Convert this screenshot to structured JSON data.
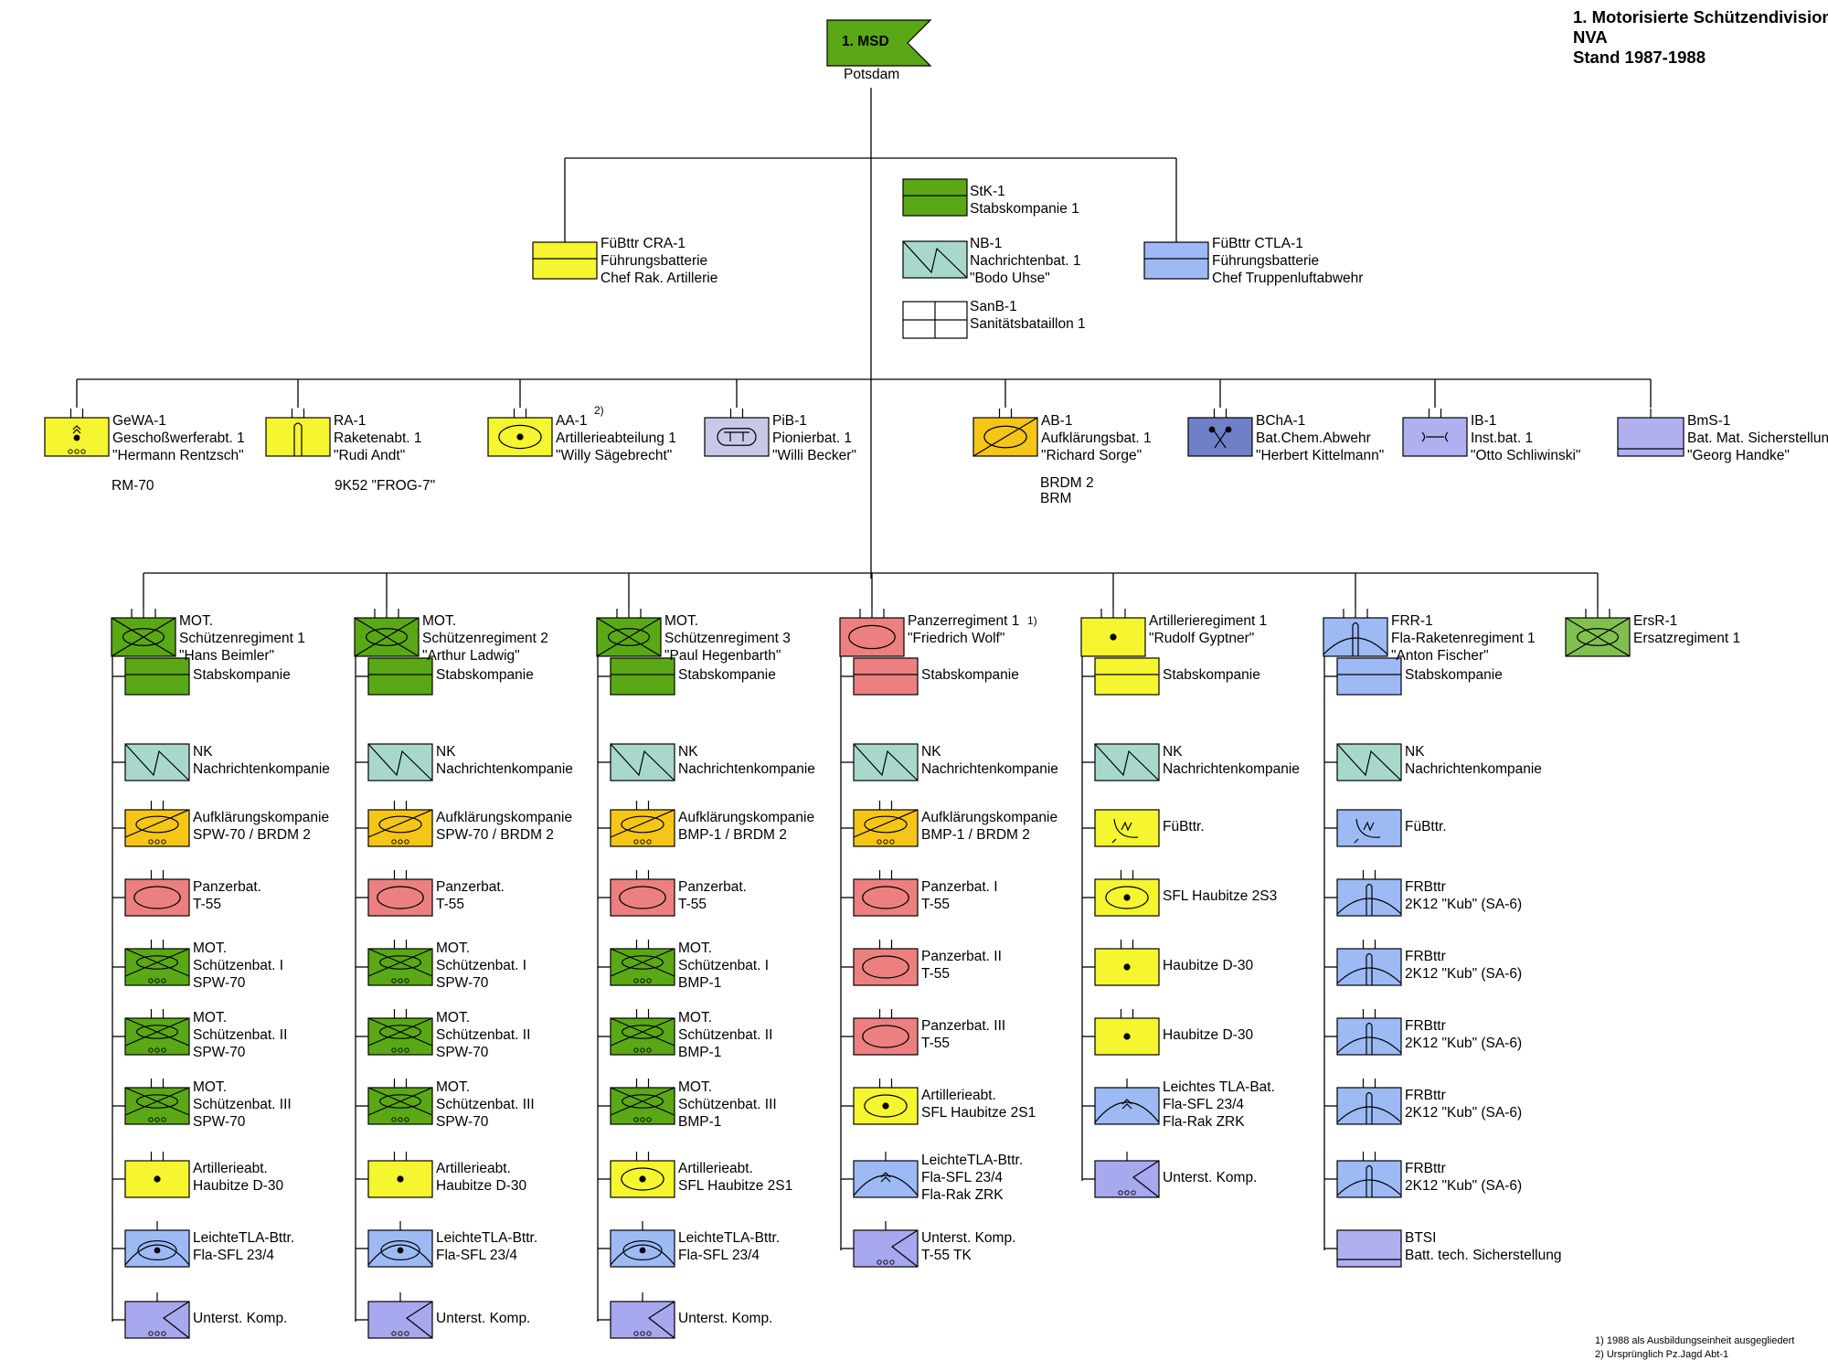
{
  "title": [
    "1. Motorisierte Schützendivision",
    "NVA",
    "Stand 1987-1988"
  ],
  "root": {
    "name": "1. MSD",
    "location": "Potsdam",
    "color": "#5aa815"
  },
  "colors": {
    "infantry": "#5aa815",
    "signals": "#a8d8cc",
    "artillery": "#f5f530",
    "tank": "#ec8080",
    "recon": "#f5c518",
    "aa": "#9dbaf5",
    "support": "#a8a8ef",
    "engineer": "#c8c8e8",
    "chem": "#7080c8",
    "supply": "#b0b0f0",
    "reserve": "#80c050",
    "medical": "#ffffff"
  },
  "hq_units": [
    {
      "lines": [
        "StK-1",
        "Stabskompanie 1"
      ],
      "symbol": "hq",
      "color": "#5aa815"
    },
    {
      "lines": [
        "NB-1",
        "Nachrichtenbat. 1",
        "\"Bodo Uhse\""
      ],
      "symbol": "signals",
      "color": "#a8d8cc"
    },
    {
      "lines": [
        "SanB-1",
        "Sanitätsbataillon 1"
      ],
      "symbol": "medical",
      "color": "#ffffff"
    },
    {
      "lines": [
        "FüBttr CRA-1",
        "Führungsbatterie",
        "Chef Rak. Artillerie"
      ],
      "symbol": "hq",
      "color": "#f5f530"
    },
    {
      "lines": [
        "FüBttr CTLA-1",
        "Führungsbatterie",
        "Chef Truppenluftabwehr"
      ],
      "symbol": "hq",
      "color": "#9dbaf5"
    }
  ],
  "battalions": [
    {
      "lines": [
        "GeWA-1",
        "Geschoßwerferabt. 1",
        "\"Hermann Rentzsch\""
      ],
      "extra": [
        "RM-70"
      ],
      "symbol": "rocket",
      "color": "#f5f530"
    },
    {
      "lines": [
        "RA-1",
        "Raketenabt. 1",
        "\"Rudi Andt\""
      ],
      "extra": [
        "9K52 \"FROG-7\""
      ],
      "symbol": "missile",
      "color": "#f5f530"
    },
    {
      "lines": [
        "AA-1",
        "Artillerieabteilung 1",
        "\"Willy Sägebrecht\""
      ],
      "note": "2)",
      "symbol": "sp_art",
      "color": "#f5f530"
    },
    {
      "lines": [
        "PiB-1",
        "Pionierbat. 1",
        "\"Willi Becker\""
      ],
      "symbol": "engineer",
      "color": "#c8c8e8"
    },
    {
      "lines": [
        "AB-1",
        "Aufklärungsbat. 1",
        "\"Richard Sorge\""
      ],
      "extra": [
        "BRDM 2",
        "BRM"
      ],
      "symbol": "recon",
      "color": "#f5c518"
    },
    {
      "lines": [
        "BChA-1",
        "Bat.Chem.Abwehr",
        "\"Herbert Kittelmann\""
      ],
      "symbol": "chem",
      "color": "#7080c8"
    },
    {
      "lines": [
        "IB-1",
        "Inst.bat. 1",
        "\"Otto Schliwinski\""
      ],
      "symbol": "maint",
      "color": "#b0b0f0"
    },
    {
      "lines": [
        "BmS-1",
        "Bat. Mat. Sicherstellung",
        "\"Georg Handke\""
      ],
      "symbol": "supply",
      "color": "#b0b0f0"
    }
  ],
  "regiments": [
    {
      "lines": [
        "MOT.",
        "Schützenregiment 1",
        "\"Hans Beimler\""
      ],
      "symbol": "inf",
      "color": "#5aa815",
      "subunits": [
        {
          "lines": [
            "Stabskompanie"
          ],
          "symbol": "hq",
          "color": "#5aa815"
        },
        {
          "lines": [
            "NK",
            "Nachrichtenkompanie"
          ],
          "symbol": "signals",
          "color": "#a8d8cc"
        },
        {
          "lines": [
            "Aufklärungskompanie",
            "SPW-70 / BRDM 2"
          ],
          "symbol": "recon_w",
          "color": "#f5c518"
        },
        {
          "lines": [
            "Panzerbat.",
            "T-55"
          ],
          "symbol": "tank",
          "color": "#ec8080"
        },
        {
          "lines": [
            "MOT.",
            "Schützenbat. I",
            "SPW-70"
          ],
          "symbol": "inf_w",
          "color": "#5aa815"
        },
        {
          "lines": [
            "MOT.",
            "Schützenbat. II",
            "SPW-70"
          ],
          "symbol": "inf_w",
          "color": "#5aa815"
        },
        {
          "lines": [
            "MOT.",
            "Schützenbat. III",
            "SPW-70"
          ],
          "symbol": "inf_w",
          "color": "#5aa815"
        },
        {
          "lines": [
            "Artillerieabt.",
            "Haubitze D-30"
          ],
          "symbol": "art",
          "color": "#f5f530"
        },
        {
          "lines": [
            "LeichteTLA-Bttr.",
            "Fla-SFL 23/4"
          ],
          "symbol": "aa_sp",
          "color": "#9dbaf5"
        },
        {
          "lines": [
            "Unterst. Komp."
          ],
          "symbol": "support",
          "color": "#a8a8ef"
        }
      ]
    },
    {
      "lines": [
        "MOT.",
        "Schützenregiment 2",
        "\"Arthur Ladwig\""
      ],
      "symbol": "inf",
      "color": "#5aa815",
      "subunits": [
        {
          "lines": [
            "Stabskompanie"
          ],
          "symbol": "hq",
          "color": "#5aa815"
        },
        {
          "lines": [
            "NK",
            "Nachrichtenkompanie"
          ],
          "symbol": "signals",
          "color": "#a8d8cc"
        },
        {
          "lines": [
            "Aufklärungskompanie",
            "SPW-70 / BRDM 2"
          ],
          "symbol": "recon_w",
          "color": "#f5c518"
        },
        {
          "lines": [
            "Panzerbat.",
            "T-55"
          ],
          "symbol": "tank",
          "color": "#ec8080"
        },
        {
          "lines": [
            "MOT.",
            "Schützenbat. I",
            "SPW-70"
          ],
          "symbol": "inf_w",
          "color": "#5aa815"
        },
        {
          "lines": [
            "MOT.",
            "Schützenbat. II",
            "SPW-70"
          ],
          "symbol": "inf_w",
          "color": "#5aa815"
        },
        {
          "lines": [
            "MOT.",
            "Schützenbat. III",
            "SPW-70"
          ],
          "symbol": "inf_w",
          "color": "#5aa815"
        },
        {
          "lines": [
            "Artillerieabt.",
            "Haubitze D-30"
          ],
          "symbol": "art",
          "color": "#f5f530"
        },
        {
          "lines": [
            "LeichteTLA-Bttr.",
            "Fla-SFL 23/4"
          ],
          "symbol": "aa_sp",
          "color": "#9dbaf5"
        },
        {
          "lines": [
            "Unterst. Komp."
          ],
          "symbol": "support",
          "color": "#a8a8ef"
        }
      ]
    },
    {
      "lines": [
        "MOT.",
        "Schützenregiment 3",
        "\"Paul Hegenbarth\""
      ],
      "symbol": "inf",
      "color": "#5aa815",
      "subunits": [
        {
          "lines": [
            "Stabskompanie"
          ],
          "symbol": "hq",
          "color": "#5aa815"
        },
        {
          "lines": [
            "NK",
            "Nachrichtenkompanie"
          ],
          "symbol": "signals",
          "color": "#a8d8cc"
        },
        {
          "lines": [
            "Aufklärungskompanie",
            "BMP-1 / BRDM 2"
          ],
          "symbol": "recon_w",
          "color": "#f5c518"
        },
        {
          "lines": [
            "Panzerbat.",
            "T-55"
          ],
          "symbol": "tank",
          "color": "#ec8080"
        },
        {
          "lines": [
            "MOT.",
            "Schützenbat. I",
            "BMP-1"
          ],
          "symbol": "inf_w",
          "color": "#5aa815"
        },
        {
          "lines": [
            "MOT.",
            "Schützenbat. II",
            "BMP-1"
          ],
          "symbol": "inf_w",
          "color": "#5aa815"
        },
        {
          "lines": [
            "MOT.",
            "Schützenbat. III",
            "BMP-1"
          ],
          "symbol": "inf_w",
          "color": "#5aa815"
        },
        {
          "lines": [
            "Artillerieabt.",
            "SFL Haubitze 2S1"
          ],
          "symbol": "sp_art",
          "color": "#f5f530"
        },
        {
          "lines": [
            "LeichteTLA-Bttr.",
            "Fla-SFL 23/4"
          ],
          "symbol": "aa_sp",
          "color": "#9dbaf5"
        },
        {
          "lines": [
            "Unterst. Komp."
          ],
          "symbol": "support",
          "color": "#a8a8ef"
        }
      ]
    },
    {
      "lines": [
        "Panzerregiment 1",
        "\"Friedrich Wolf\""
      ],
      "note": "1)",
      "symbol": "tank",
      "color": "#ec8080",
      "subunits": [
        {
          "lines": [
            "Stabskompanie"
          ],
          "symbol": "hq",
          "color": "#ec8080"
        },
        {
          "lines": [
            "NK",
            "Nachrichtenkompanie"
          ],
          "symbol": "signals",
          "color": "#a8d8cc"
        },
        {
          "lines": [
            "Aufklärungskompanie",
            "BMP-1 / BRDM 2"
          ],
          "symbol": "recon_w",
          "color": "#f5c518"
        },
        {
          "lines": [
            "Panzerbat. I",
            "T-55"
          ],
          "symbol": "tank",
          "color": "#ec8080"
        },
        {
          "lines": [
            "Panzerbat. II",
            "T-55"
          ],
          "symbol": "tank",
          "color": "#ec8080"
        },
        {
          "lines": [
            "Panzerbat. III",
            "T-55"
          ],
          "symbol": "tank",
          "color": "#ec8080"
        },
        {
          "lines": [
            "Artillerieabt.",
            "SFL Haubitze 2S1"
          ],
          "symbol": "sp_art",
          "color": "#f5f530"
        },
        {
          "lines": [
            "LeichteTLA-Bttr.",
            "Fla-SFL 23/4",
            "Fla-Rak ZRK"
          ],
          "symbol": "aa_rocket",
          "color": "#9dbaf5"
        },
        {
          "lines": [
            "Unterst. Komp.",
            "T-55 TK"
          ],
          "symbol": "support",
          "color": "#a8a8ef"
        }
      ]
    },
    {
      "lines": [
        "Artillerieregiment 1",
        "\"Rudolf Gyptner\""
      ],
      "symbol": "art",
      "color": "#f5f530",
      "subunits": [
        {
          "lines": [
            "Stabskompanie"
          ],
          "symbol": "hq",
          "color": "#f5f530"
        },
        {
          "lines": [
            "NK",
            "Nachrichtenkompanie"
          ],
          "symbol": "signals",
          "color": "#a8d8cc"
        },
        {
          "lines": [
            "FüBttr."
          ],
          "symbol": "radar",
          "color": "#f5f530"
        },
        {
          "lines": [
            "SFL Haubitze 2S3"
          ],
          "symbol": "sp_art",
          "color": "#f5f530"
        },
        {
          "lines": [
            "Haubitze D-30"
          ],
          "symbol": "art",
          "color": "#f5f530"
        },
        {
          "lines": [
            "Haubitze D-30"
          ],
          "symbol": "art",
          "color": "#f5f530"
        },
        {
          "lines": [
            "Leichtes TLA-Bat.",
            "Fla-SFL 23/4",
            "Fla-Rak ZRK"
          ],
          "symbol": "aa_rocket",
          "color": "#9dbaf5"
        },
        {
          "lines": [
            "Unterst. Komp."
          ],
          "symbol": "support",
          "color": "#a8a8ef"
        }
      ]
    },
    {
      "lines": [
        "FRR-1",
        "Fla-Raketenregiment 1",
        "\"Anton Fischer\""
      ],
      "symbol": "sam",
      "color": "#9dbaf5",
      "subunits": [
        {
          "lines": [
            "Stabskompanie"
          ],
          "symbol": "hq",
          "color": "#9dbaf5"
        },
        {
          "lines": [
            "NK",
            "Nachrichtenkompanie"
          ],
          "symbol": "signals",
          "color": "#a8d8cc"
        },
        {
          "lines": [
            "FüBttr."
          ],
          "symbol": "radar",
          "color": "#9dbaf5"
        },
        {
          "lines": [
            "FRBttr",
            "2K12 \"Kub\" (SA-6)"
          ],
          "symbol": "sam",
          "color": "#9dbaf5"
        },
        {
          "lines": [
            "FRBttr",
            "2K12 \"Kub\" (SA-6)"
          ],
          "symbol": "sam",
          "color": "#9dbaf5"
        },
        {
          "lines": [
            "FRBttr",
            "2K12 \"Kub\" (SA-6)"
          ],
          "symbol": "sam",
          "color": "#9dbaf5"
        },
        {
          "lines": [
            "FRBttr",
            "2K12 \"Kub\" (SA-6)"
          ],
          "symbol": "sam",
          "color": "#9dbaf5"
        },
        {
          "lines": [
            "FRBttr",
            "2K12 \"Kub\" (SA-6)"
          ],
          "symbol": "sam",
          "color": "#9dbaf5"
        },
        {
          "lines": [
            "BTSI",
            "Batt. tech. Sicherstellung"
          ],
          "symbol": "supply",
          "color": "#b0b0f0"
        }
      ]
    },
    {
      "lines": [
        "ErsR-1",
        "Ersatzregiment 1"
      ],
      "symbol": "inf",
      "color": "#80c050",
      "subunits": []
    }
  ],
  "footnotes": [
    "1) 1988 als Ausbildungseinheit ausgegliedert",
    "2) Ursprünglich Pz.Jagd Abt-1"
  ]
}
